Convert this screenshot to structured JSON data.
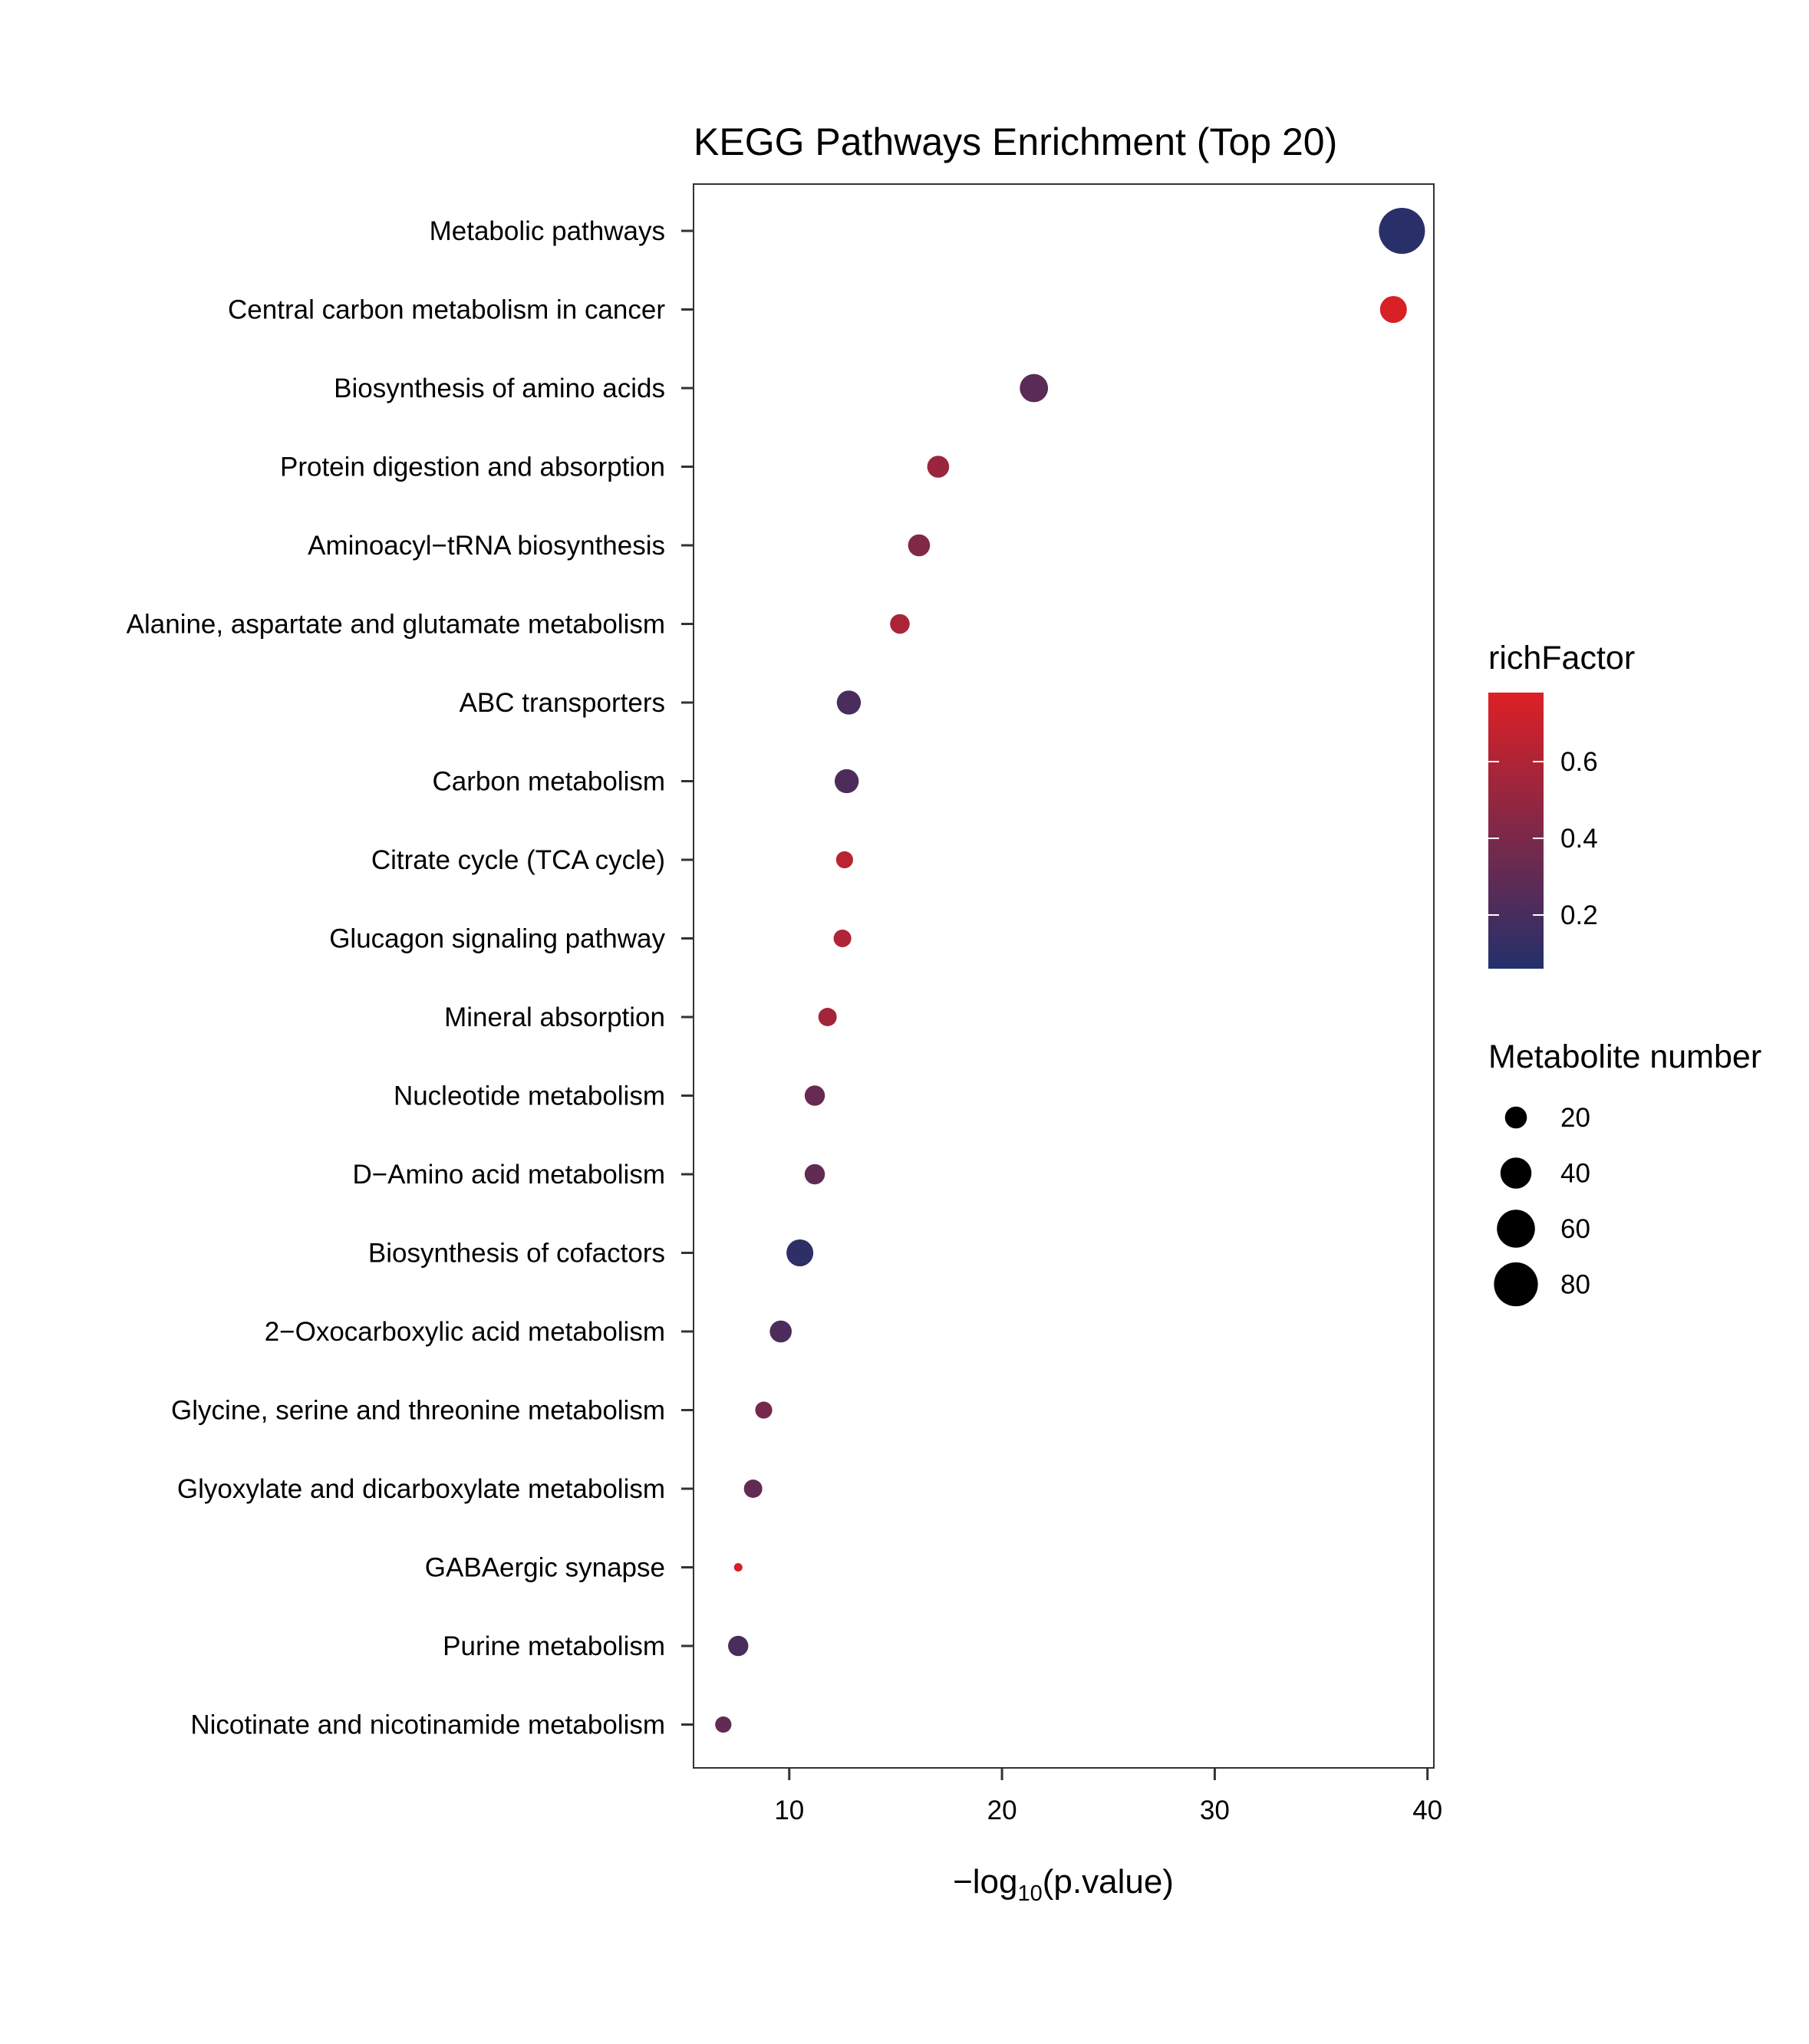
{
  "chart_data": {
    "type": "scatter",
    "title": "KEGG Pathways Enrichment (Top 20)",
    "xlabel_parts": [
      "−log",
      "10",
      "(p.value)"
    ],
    "ylabel": "",
    "xlim": [
      5.5,
      40.3
    ],
    "xticks": [
      "10",
      "20",
      "30",
      "40"
    ],
    "grid": false,
    "colors": {
      "low": "#24306B",
      "high": "#DD2025"
    },
    "points": [
      {
        "pathway": "Metabolic pathways",
        "x": 38.8,
        "richFactor": 0.08,
        "count": 88
      },
      {
        "pathway": "Central carbon metabolism in cancer",
        "x": 38.4,
        "richFactor": 0.76,
        "count": 30
      },
      {
        "pathway": "Biosynthesis of amino acids",
        "x": 21.5,
        "richFactor": 0.27,
        "count": 33
      },
      {
        "pathway": "Protein digestion and absorption",
        "x": 17.0,
        "richFactor": 0.52,
        "count": 20
      },
      {
        "pathway": "Aminoacyl−tRNA biosynthesis",
        "x": 16.1,
        "richFactor": 0.42,
        "count": 20
      },
      {
        "pathway": "Alanine, aspartate and glutamate metabolism",
        "x": 15.2,
        "richFactor": 0.58,
        "count": 16
      },
      {
        "pathway": "ABC transporters",
        "x": 12.8,
        "richFactor": 0.2,
        "count": 24
      },
      {
        "pathway": "Carbon metabolism",
        "x": 12.7,
        "richFactor": 0.22,
        "count": 24
      },
      {
        "pathway": "Citrate cycle (TCA cycle)",
        "x": 12.6,
        "richFactor": 0.65,
        "count": 12
      },
      {
        "pathway": "Glucagon signaling pathway",
        "x": 12.5,
        "richFactor": 0.6,
        "count": 13
      },
      {
        "pathway": "Mineral absorption",
        "x": 11.8,
        "richFactor": 0.55,
        "count": 14
      },
      {
        "pathway": "Nucleotide metabolism",
        "x": 11.2,
        "richFactor": 0.32,
        "count": 17
      },
      {
        "pathway": "D−Amino acid metabolism",
        "x": 11.2,
        "richFactor": 0.3,
        "count": 17
      },
      {
        "pathway": "Biosynthesis of cofactors",
        "x": 10.5,
        "richFactor": 0.1,
        "count": 30
      },
      {
        "pathway": "2−Oxocarboxylic acid metabolism",
        "x": 9.6,
        "richFactor": 0.22,
        "count": 20
      },
      {
        "pathway": "Glycine, serine and threonine metabolism",
        "x": 8.8,
        "richFactor": 0.38,
        "count": 12
      },
      {
        "pathway": "Glyoxylate and dicarboxylate metabolism",
        "x": 8.3,
        "richFactor": 0.3,
        "count": 14
      },
      {
        "pathway": "GABAergic synapse",
        "x": 7.6,
        "richFactor": 0.75,
        "count": 3
      },
      {
        "pathway": "Purine metabolism",
        "x": 7.6,
        "richFactor": 0.2,
        "count": 17
      },
      {
        "pathway": "Nicotinate and nicotinamide metabolism",
        "x": 6.9,
        "richFactor": 0.3,
        "count": 11
      }
    ],
    "color_legend": {
      "title": "richFactor",
      "range": [
        0.06,
        0.78
      ],
      "ticks": [
        {
          "value": 0.2,
          "label": "0.2"
        },
        {
          "value": 0.4,
          "label": "0.4"
        },
        {
          "value": 0.6,
          "label": "0.6"
        }
      ]
    },
    "size_legend": {
      "title": "Metabolite number",
      "values": [
        20,
        40,
        60,
        80
      ],
      "labels": [
        "20",
        "40",
        "60",
        "80"
      ]
    }
  }
}
